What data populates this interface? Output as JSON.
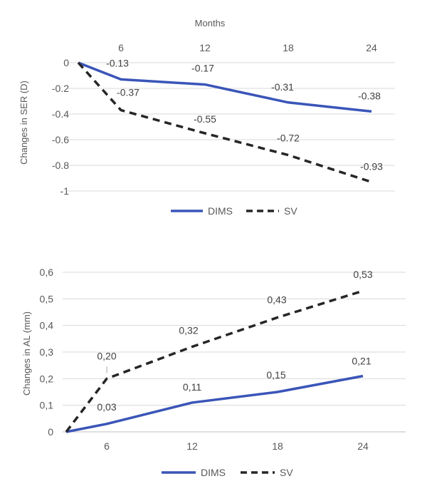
{
  "chart_data": [
    {
      "type": "line",
      "title": "",
      "xlabel": "Months",
      "ylabel": "Changes in SER (D)",
      "x": [
        0,
        6,
        12,
        18,
        24
      ],
      "x_tick_labels": [
        "6",
        "12",
        "18",
        "24"
      ],
      "y_tick_labels": [
        "0",
        "-0.2",
        "-0.4",
        "-0.6",
        "-0.8",
        "-1"
      ],
      "ylim": [
        -1,
        0
      ],
      "xaxis_position": "top",
      "grid": true,
      "legend_position": "bottom",
      "series": [
        {
          "name": "DIMS",
          "values": [
            0,
            -0.13,
            -0.17,
            -0.31,
            -0.38
          ],
          "labels": [
            "",
            "-0.13",
            "-0.17",
            "-0.31",
            "-0.38"
          ],
          "color": "#3a55b8",
          "dash": "solid"
        },
        {
          "name": "SV",
          "values": [
            0,
            -0.37,
            -0.55,
            -0.72,
            -0.93
          ],
          "labels": [
            "",
            "-0.37",
            "-0.55",
            "-0.72",
            "-0.93"
          ],
          "color": "#262626",
          "dash": "dashed"
        }
      ]
    },
    {
      "type": "line",
      "title": "",
      "xlabel": "",
      "ylabel": "Changes in AL (mm)",
      "x": [
        0,
        6,
        12,
        18,
        24
      ],
      "x_tick_labels": [
        "6",
        "12",
        "18",
        "24"
      ],
      "y_tick_labels": [
        "0",
        "0,1",
        "0,2",
        "0,3",
        "0,4",
        "0,5",
        "0,6"
      ],
      "ylim": [
        0,
        0.6
      ],
      "xaxis_position": "bottom",
      "grid": true,
      "legend_position": "bottom",
      "series": [
        {
          "name": "DIMS",
          "values": [
            0,
            0.03,
            0.11,
            0.15,
            0.21
          ],
          "labels": [
            "",
            "0,03",
            "0,11",
            "0,15",
            "0,21"
          ],
          "color": "#3a55b8",
          "dash": "solid"
        },
        {
          "name": "SV",
          "values": [
            0,
            0.2,
            0.32,
            0.43,
            0.53
          ],
          "labels": [
            "",
            "0,20",
            "0,32",
            "0,43",
            "0,53"
          ],
          "color": "#262626",
          "dash": "dashed"
        }
      ]
    }
  ]
}
